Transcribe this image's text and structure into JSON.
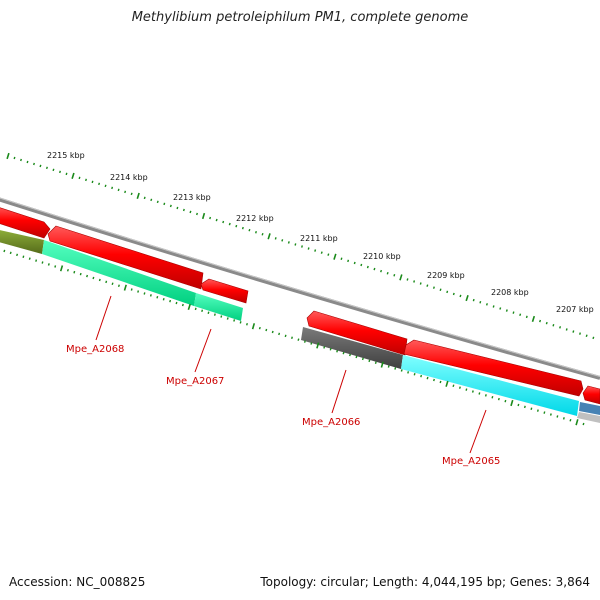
{
  "title": "Methylibium petroleiphilum PM1, complete genome",
  "footer": {
    "accession": "Accession: NC_008825",
    "summary": "Topology: circular; Length: 4,044,195 bp; Genes: 3,864"
  },
  "ticks": [
    {
      "label": "2215 kbp"
    },
    {
      "label": "2214 kbp"
    },
    {
      "label": "2213 kbp"
    },
    {
      "label": "2212 kbp"
    },
    {
      "label": "2211 kbp"
    },
    {
      "label": "2210 kbp"
    },
    {
      "label": "2209 kbp"
    },
    {
      "label": "2208 kbp"
    },
    {
      "label": "2207 kbp"
    }
  ],
  "genes": [
    {
      "label": "Mpe_A2068"
    },
    {
      "label": "Mpe_A2067"
    },
    {
      "label": "Mpe_A2066"
    },
    {
      "label": "Mpe_A2065"
    }
  ],
  "colors": {
    "backbone": "#8a8a8a",
    "cds": "#ff0000",
    "tick": "#1a8a1a",
    "label": "#cc0000",
    "olive": "#6b8e23",
    "seagreen": "#00ee99",
    "gray": "#555555",
    "cyan": "#00ffff",
    "steelblue": "#4682b4"
  }
}
